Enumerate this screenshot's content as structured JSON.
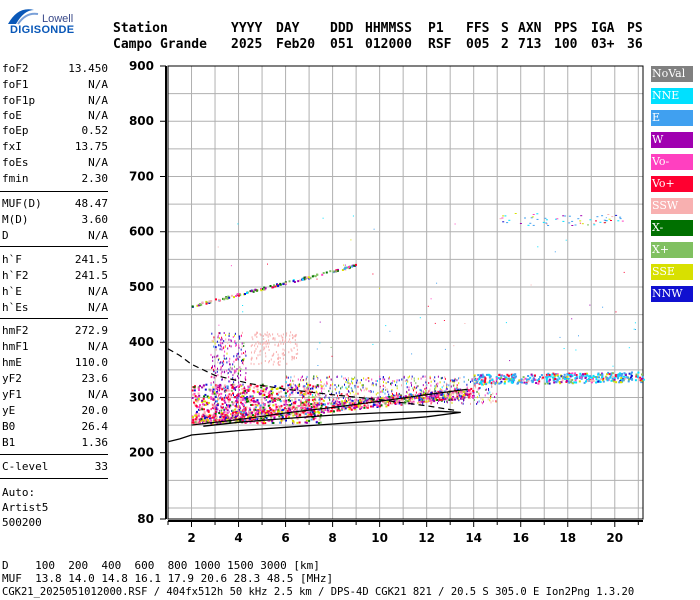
{
  "logo": {
    "brand": "Lowell",
    "name": "DIGISONDE"
  },
  "header": {
    "labels": [
      "Station",
      "YYYY",
      "DAY",
      "DDD",
      "HHMMSS",
      "P1",
      "FFS",
      "S",
      "AXN",
      "PPS",
      "IGA",
      "PS"
    ],
    "values": [
      "Campo Grande",
      "2025",
      "Feb20",
      "051",
      "012000",
      "RSF",
      "005",
      "2",
      "713",
      "100",
      "03+",
      "36"
    ]
  },
  "params": [
    {
      "k": "foF2",
      "v": "13.450"
    },
    {
      "k": "foF1",
      "v": "N/A"
    },
    {
      "k": "foF1p",
      "v": "N/A"
    },
    {
      "k": "foE",
      "v": "N/A"
    },
    {
      "k": "foEp",
      "v": "0.52"
    },
    {
      "k": "fxI",
      "v": "13.75"
    },
    {
      "k": "foEs",
      "v": "N/A"
    },
    {
      "k": "fmin",
      "v": "2.30"
    },
    {
      "k": "MUF(D)",
      "v": "48.47"
    },
    {
      "k": "M(D)",
      "v": "3.60"
    },
    {
      "k": "D",
      "v": "N/A"
    },
    {
      "k": "h`F",
      "v": "241.5"
    },
    {
      "k": "h`F2",
      "v": "241.5"
    },
    {
      "k": "h`E",
      "v": "N/A"
    },
    {
      "k": "h`Es",
      "v": "N/A"
    },
    {
      "k": "hmF2",
      "v": "272.9"
    },
    {
      "k": "hmF1",
      "v": "N/A"
    },
    {
      "k": "hmE",
      "v": "110.0"
    },
    {
      "k": "yF2",
      "v": "23.6"
    },
    {
      "k": "yF1",
      "v": "N/A"
    },
    {
      "k": "yE",
      "v": "20.0"
    },
    {
      "k": "B0",
      "v": "26.4"
    },
    {
      "k": "B1",
      "v": "1.36"
    },
    {
      "k": "C-level",
      "v": "33"
    }
  ],
  "auto": [
    "Auto:",
    "Artist5",
    "500200"
  ],
  "legend": [
    {
      "label": "NoVal",
      "bg": "#808080",
      "fg": "#ffffff"
    },
    {
      "label": "NNE",
      "bg": "#00e0ff",
      "fg": "#ffffff"
    },
    {
      "label": "E",
      "bg": "#40a0f0",
      "fg": "#ffffff"
    },
    {
      "label": "W",
      "bg": "#a000b0",
      "fg": "#ffffff"
    },
    {
      "label": "Vo-",
      "bg": "#ff40c0",
      "fg": "#ffffff"
    },
    {
      "label": "Vo+",
      "bg": "#ff0030",
      "fg": "#ffffff"
    },
    {
      "label": "SSW",
      "bg": "#f8b0b0",
      "fg": "#ffffff"
    },
    {
      "label": "X-",
      "bg": "#007000",
      "fg": "#ffffff"
    },
    {
      "label": "X+",
      "bg": "#80c060",
      "fg": "#ffffff"
    },
    {
      "label": "SSE",
      "bg": "#d8e000",
      "fg": "#ffffff"
    },
    {
      "label": "NNW",
      "bg": "#1010d0",
      "fg": "#ffffff"
    }
  ],
  "bottom": {
    "d_row": "D    100  200  400  600  800 1000 1500 3000 [km]",
    "muf_row": "MUF  13.8 14.0 14.8 16.1 17.9 20.6 28.3 48.5 [MHz]",
    "footer": "CGK21_2025051012000.RSF / 404fx512h 50 kHz 2.5 km / DPS-4D CGK21 821 / 20.5 S 305.0 E Ion2Png 1.3.20"
  },
  "chart_data": {
    "type": "scatter",
    "xlim": [
      1,
      21.2
    ],
    "ylim": [
      80,
      900
    ],
    "xticks": [
      2,
      4,
      6,
      8,
      10,
      12,
      14,
      16,
      18,
      20
    ],
    "yticks": [
      80,
      200,
      300,
      400,
      500,
      600,
      700,
      800,
      900
    ],
    "grid": true,
    "profile": [
      [
        1.0,
        220
      ],
      [
        1.5,
        225
      ],
      [
        2.0,
        232
      ],
      [
        4,
        240
      ],
      [
        6,
        246
      ],
      [
        8,
        252
      ],
      [
        10,
        258
      ],
      [
        12,
        265
      ],
      [
        13.45,
        273
      ],
      [
        12.5,
        275
      ],
      [
        10,
        272
      ],
      [
        8,
        268
      ],
      [
        6,
        262
      ],
      [
        4,
        255
      ],
      [
        2.5,
        248
      ]
    ],
    "extraordinary_trace": [
      [
        2,
        250
      ],
      [
        4,
        260
      ],
      [
        6,
        272
      ],
      [
        8,
        282
      ],
      [
        10,
        293
      ],
      [
        12,
        305
      ],
      [
        13.75,
        315
      ]
    ],
    "dashed_curve": [
      [
        1.0,
        388
      ],
      [
        1.5,
        376
      ],
      [
        2,
        360
      ],
      [
        3,
        340
      ],
      [
        4.5,
        325
      ],
      [
        6,
        315
      ],
      [
        8,
        305
      ],
      [
        10,
        296
      ],
      [
        12,
        285
      ],
      [
        13.3,
        276
      ]
    ]
  }
}
